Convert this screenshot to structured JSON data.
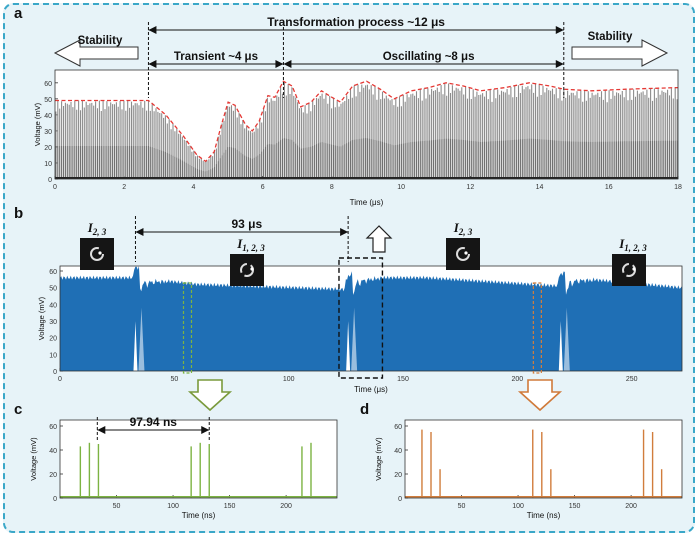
{
  "figure": {
    "panels": [
      "a",
      "b",
      "c",
      "d"
    ],
    "colors": {
      "frame": "#3aa7c8",
      "background": "#e7f3f8",
      "trace_gray": "#8c8c8c",
      "envelope": "#e53935",
      "trace_blue": "#1f6fb5",
      "trace_green": "#7cb342",
      "trace_orange": "#d17d3c",
      "arrow_green": "#7a9a3c",
      "arrow_orange": "#d07a3a"
    }
  },
  "chart_data": [
    {
      "id": "a",
      "type": "line",
      "xlabel": "Time (μs)",
      "ylabel": "Voltage (mV)",
      "xlim": [
        0,
        18
      ],
      "ylim": [
        0,
        68
      ],
      "xticks": [
        0,
        2,
        4,
        6,
        8,
        10,
        12,
        14,
        16,
        18
      ],
      "yticks": [
        0,
        10,
        20,
        30,
        40,
        50,
        60
      ],
      "annotations": {
        "title": "Transformation process   ~12 μs",
        "left": "Stability",
        "right": "Stability",
        "transient": "Transient ~4 μs",
        "oscillating": "Oscillating  ~8 μs"
      },
      "markers_x": [
        2.7,
        6.6,
        14.7
      ],
      "series": [
        {
          "style": "dense pulse train",
          "color": "#8c8c8c",
          "envelope": [
            [
              0,
              49
            ],
            [
              2.7,
              49
            ],
            [
              3.2,
              40
            ],
            [
              3.7,
              27
            ],
            [
              4.1,
              15
            ],
            [
              4.35,
              11
            ],
            [
              4.6,
              17
            ],
            [
              4.8,
              33
            ],
            [
              5.0,
              48
            ],
            [
              5.2,
              46
            ],
            [
              5.5,
              34
            ],
            [
              5.7,
              30
            ],
            [
              5.9,
              36
            ],
            [
              6.15,
              52
            ],
            [
              6.35,
              51
            ],
            [
              6.6,
              61
            ],
            [
              6.85,
              58
            ],
            [
              7.1,
              45
            ],
            [
              7.4,
              48
            ],
            [
              7.7,
              55
            ],
            [
              8.0,
              51
            ],
            [
              8.25,
              48
            ],
            [
              8.6,
              58
            ],
            [
              9.0,
              61
            ],
            [
              9.4,
              56
            ],
            [
              9.8,
              50
            ],
            [
              10.3,
              55
            ],
            [
              10.8,
              57
            ],
            [
              11.3,
              60
            ],
            [
              11.8,
              58
            ],
            [
              12.3,
              55
            ],
            [
              13.0,
              57
            ],
            [
              13.7,
              60
            ],
            [
              14.3,
              58
            ],
            [
              14.7,
              56
            ],
            [
              15.5,
              55
            ],
            [
              16.5,
              56
            ],
            [
              18,
              57
            ]
          ]
        },
        {
          "name": "envelope",
          "style": "dashed",
          "color": "#e53935",
          "values": [
            [
              0,
              49
            ],
            [
              2.7,
              49
            ],
            [
              3.2,
              40
            ],
            [
              3.7,
              27
            ],
            [
              4.1,
              15
            ],
            [
              4.35,
              11
            ],
            [
              4.6,
              17
            ],
            [
              4.8,
              33
            ],
            [
              5.0,
              48
            ],
            [
              5.2,
              46
            ],
            [
              5.5,
              34
            ],
            [
              5.7,
              30
            ],
            [
              5.9,
              36
            ],
            [
              6.15,
              52
            ],
            [
              6.35,
              51
            ],
            [
              6.6,
              61
            ],
            [
              6.85,
              58
            ],
            [
              7.1,
              45
            ],
            [
              7.4,
              48
            ],
            [
              7.7,
              55
            ],
            [
              8.0,
              51
            ],
            [
              8.25,
              48
            ],
            [
              8.6,
              58
            ],
            [
              9.0,
              61
            ],
            [
              9.4,
              56
            ],
            [
              9.8,
              50
            ],
            [
              10.3,
              55
            ],
            [
              10.8,
              57
            ],
            [
              11.3,
              60
            ],
            [
              11.8,
              58
            ],
            [
              12.3,
              55
            ],
            [
              13.0,
              57
            ],
            [
              13.7,
              60
            ],
            [
              14.3,
              58
            ],
            [
              14.7,
              56
            ],
            [
              15.5,
              55
            ],
            [
              16.5,
              56
            ],
            [
              18,
              57
            ]
          ]
        }
      ]
    },
    {
      "id": "b",
      "type": "area",
      "xlabel": "Time (μs)",
      "ylabel": "Voltage (mV)",
      "xlim": [
        0,
        272
      ],
      "ylim": [
        0,
        63
      ],
      "xticks": [
        0,
        50,
        100,
        150,
        200,
        250
      ],
      "yticks": [
        0,
        10,
        20,
        30,
        40,
        50,
        60
      ],
      "annotations": {
        "measure": "93 μs",
        "labels": [
          "I2, 3",
          "I1, 2, 3",
          "I2, 3",
          "I1, 2, 3"
        ]
      },
      "label_x": [
        28,
        135,
        218,
        286
      ],
      "dashed_lines_x": [
        33,
        126
      ],
      "series": [
        {
          "style": "filled dense trace",
          "color": "#1f6fb5",
          "baseline": [
            [
              0,
              56
            ],
            [
              34,
              56
            ],
            [
              60,
              52
            ],
            [
              125,
              49
            ],
            [
              130,
              56
            ],
            [
              160,
              56
            ],
            [
              218,
              51
            ],
            [
              224,
              56
            ],
            [
              272,
              50
            ]
          ],
          "dips": [
            33,
            126,
            219
          ]
        }
      ]
    },
    {
      "id": "c",
      "type": "line",
      "xlabel": "Time (ns)",
      "ylabel": "Voltage (mV)",
      "xlim": [
        0,
        245
      ],
      "ylim": [
        0,
        65
      ],
      "xticks": [
        50,
        100,
        150,
        200
      ],
      "yticks": [
        0,
        20,
        40,
        60
      ],
      "annotations": {
        "measure": "97.94 ns"
      },
      "series": [
        {
          "style": "spikes",
          "color": "#7cb342",
          "x": [
            18,
            26,
            34,
            116,
            124,
            132,
            214,
            222
          ],
          "values": [
            43,
            46,
            45,
            43,
            46,
            45,
            43,
            46
          ]
        }
      ]
    },
    {
      "id": "d",
      "type": "line",
      "xlabel": "Time (ns)",
      "ylabel": "Voltage (mV)",
      "xlim": [
        0,
        245
      ],
      "ylim": [
        0,
        65
      ],
      "xticks": [
        50,
        100,
        150,
        200
      ],
      "yticks": [
        0,
        20,
        40,
        60
      ],
      "series": [
        {
          "style": "spikes",
          "color": "#d17d3c",
          "x": [
            15,
            23,
            31,
            113,
            121,
            129,
            211,
            219,
            227
          ],
          "values": [
            57,
            55,
            24,
            57,
            55,
            24,
            57,
            55,
            24
          ]
        }
      ]
    }
  ]
}
